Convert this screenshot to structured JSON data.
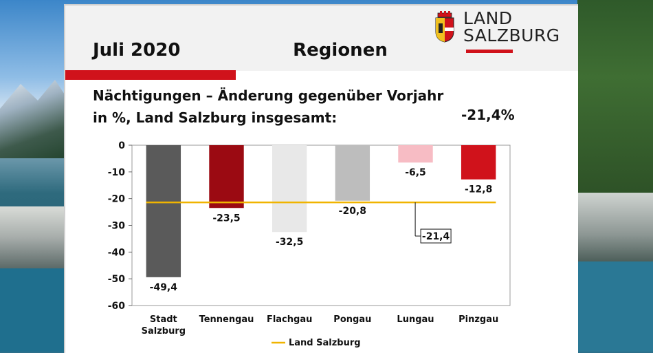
{
  "header": {
    "date_label": "Juli 2020",
    "title": "Regionen",
    "logo_line1": "LAND",
    "logo_line2": "SALZBURG"
  },
  "subtitle_line1": "Nächtigungen – Änderung gegenüber Vorjahr",
  "subtitle_line2": "in %, Land Salzburg insgesamt:",
  "total_label": "-21,4%",
  "colors": {
    "accent_red": "#d0121b",
    "reference_line": "#f0b400"
  },
  "chart_data": {
    "type": "bar",
    "categories": [
      "Stadt Salzburg",
      "Tennengau",
      "Flachgau",
      "Pongau",
      "Lungau",
      "Pinzgau"
    ],
    "category_lines": [
      [
        "Stadt",
        "Salzburg"
      ],
      [
        "Tennengau"
      ],
      [
        "Flachgau"
      ],
      [
        "Pongau"
      ],
      [
        "Lungau"
      ],
      [
        "Pinzgau"
      ]
    ],
    "values": [
      -49.4,
      -23.5,
      -32.5,
      -20.8,
      -6.5,
      -12.8
    ],
    "value_labels": [
      "-49,4",
      "-23,5",
      "-32,5",
      "-20,8",
      "-6,5",
      "-12,8"
    ],
    "bar_colors": [
      "#5a5a5a",
      "#9b0a12",
      "#e8e8e8",
      "#bdbdbd",
      "#f7bcc4",
      "#d0121b"
    ],
    "reference_line": {
      "name": "Land Salzburg",
      "value": -21.4,
      "label": "-21,4"
    },
    "ylim": [
      -60,
      0
    ],
    "yticks": [
      0,
      -10,
      -20,
      -30,
      -40,
      -50,
      -60
    ],
    "ytick_labels": [
      "0",
      "-10",
      "-20",
      "-30",
      "-40",
      "-50",
      "-60"
    ],
    "legend": "bottom"
  }
}
